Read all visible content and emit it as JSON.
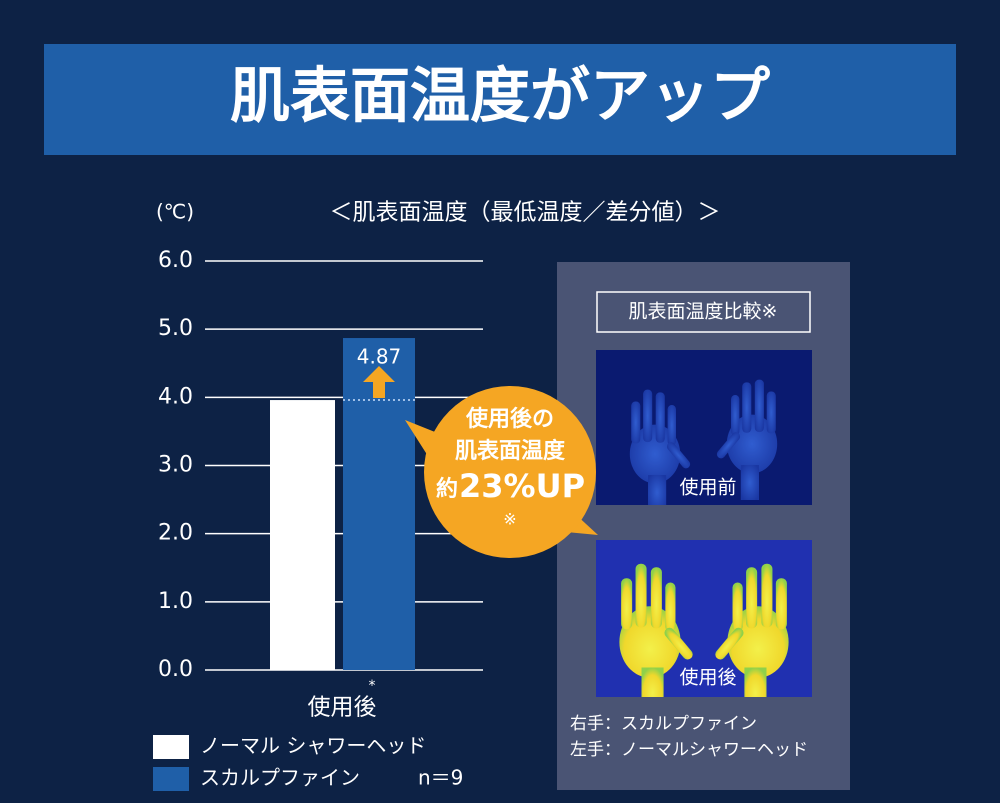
{
  "header": {
    "title": "肌表面温度がアップ"
  },
  "chart_data": {
    "type": "bar",
    "title": "＜肌表面温度（最低温度／差分値）＞",
    "y_label": "(℃)",
    "categories": [
      "使用後"
    ],
    "category_note": "*",
    "series": [
      {
        "name": "ノーマル シャワーヘッド",
        "color": "#ffffff",
        "values": [
          3.96
        ]
      },
      {
        "name": "スカルプファイン",
        "color": "#1f5fa8",
        "values": [
          4.87
        ]
      }
    ],
    "ylim": [
      0,
      6
    ],
    "yticks": [
      {
        "value": 0,
        "label": "0.0"
      },
      {
        "value": 1,
        "label": "1.0"
      },
      {
        "value": 2,
        "label": "2.0"
      },
      {
        "value": 3,
        "label": "3.0"
      },
      {
        "value": 4,
        "label": "4.0"
      },
      {
        "value": 5,
        "label": "5.0"
      },
      {
        "value": 6,
        "label": "6.0"
      }
    ],
    "grid": true,
    "sample_note": "n＝9",
    "callout": {
      "lines": [
        "使用後の",
        "肌表面温度"
      ],
      "prefix": "約",
      "highlight": "23%UP",
      "note": "※"
    }
  },
  "panel": {
    "title": "肌表面温度比較※",
    "before_label": "使用前",
    "after_label": "使用後",
    "notes": [
      "右手：スカルプファイン",
      "左手：ノーマルシャワーヘッド"
    ]
  }
}
